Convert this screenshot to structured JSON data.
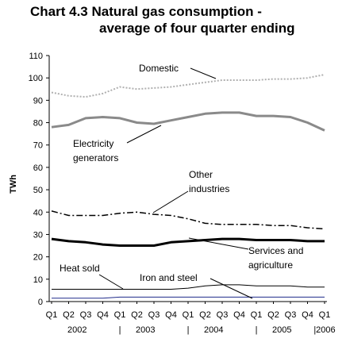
{
  "title_line1": "Chart 4.3 Natural gas consumption -",
  "title_line2": "average of four quarter ending",
  "chart_data": {
    "type": "line",
    "title": "Chart 4.3 Natural gas consumption - average of four quarter ending",
    "ylabel": "TWh",
    "ylim": [
      0,
      110
    ],
    "yticks": [
      0,
      10,
      20,
      30,
      40,
      50,
      60,
      70,
      80,
      90,
      100,
      110
    ],
    "categories": [
      "Q1",
      "Q2",
      "Q3",
      "Q4",
      "Q1",
      "Q2",
      "Q3",
      "Q4",
      "Q1",
      "Q2",
      "Q3",
      "Q4",
      "Q1",
      "Q2",
      "Q3",
      "Q4",
      "Q1"
    ],
    "year_labels": [
      {
        "label": "2002",
        "index": 1.5
      },
      {
        "label": "|",
        "index": 4
      },
      {
        "label": "2003",
        "index": 5.5
      },
      {
        "label": "|",
        "index": 8
      },
      {
        "label": "2004",
        "index": 9.5
      },
      {
        "label": "|",
        "index": 12
      },
      {
        "label": "2005",
        "index": 13.5
      },
      {
        "label": "|2006",
        "index": 16
      }
    ],
    "series": [
      {
        "name": "Domestic",
        "color": "#b0b0b0",
        "style": "dotted",
        "values": [
          93.5,
          92,
          91.5,
          93,
          96,
          95,
          95.5,
          96,
          97,
          98,
          99,
          99,
          99,
          99.5,
          99.5,
          100,
          101.5
        ]
      },
      {
        "name": "Electricity generators",
        "color": "#8a8a8a",
        "style": "solid-thick",
        "values": [
          78,
          79,
          82,
          82.5,
          82,
          80,
          79.5,
          81,
          82.5,
          84,
          84.5,
          84.5,
          83,
          83,
          82.5,
          80,
          76.5
        ]
      },
      {
        "name": "Other industries",
        "color": "#000000",
        "style": "dashdot",
        "values": [
          40.5,
          38.5,
          38.5,
          38.5,
          39.5,
          40,
          39,
          38.5,
          37,
          35,
          34.5,
          34.5,
          34.5,
          34,
          34,
          33,
          32.5
        ]
      },
      {
        "name": "Services and agriculture",
        "color": "#000000",
        "style": "solid-thick",
        "values": [
          28,
          27,
          26.5,
          25.5,
          25,
          25,
          25,
          26.5,
          27,
          27.5,
          28,
          28,
          27.5,
          27.5,
          27.5,
          27,
          27
        ]
      },
      {
        "name": "Heat sold",
        "color": "#000000",
        "style": "solid-thin",
        "values": [
          5.5,
          5.5,
          5.5,
          5.5,
          5.5,
          5.5,
          5.5,
          5.5,
          6,
          7,
          7.5,
          7.5,
          7,
          7,
          7,
          6.5,
          6.5
        ]
      },
      {
        "name": "Iron and steel",
        "color": "#1f2a8a",
        "style": "solid-thin",
        "values": [
          1.5,
          1.5,
          1.5,
          1.5,
          2,
          2,
          2,
          2,
          2,
          2,
          2,
          2,
          2,
          2,
          2,
          2,
          2
        ]
      }
    ],
    "annotations": [
      {
        "series": "Domestic",
        "lines": [
          "Domestic"
        ]
      },
      {
        "series": "Electricity generators",
        "lines": [
          "Electricity",
          "generators"
        ]
      },
      {
        "series": "Other industries",
        "lines": [
          "Other",
          "industries"
        ]
      },
      {
        "series": "Services and agriculture",
        "lines": [
          "Services and",
          "agriculture"
        ]
      },
      {
        "series": "Heat sold",
        "lines": [
          "Heat sold"
        ]
      },
      {
        "series": "Iron and steel",
        "lines": [
          "Iron and steel"
        ]
      }
    ],
    "grid": false,
    "legend": "none"
  }
}
